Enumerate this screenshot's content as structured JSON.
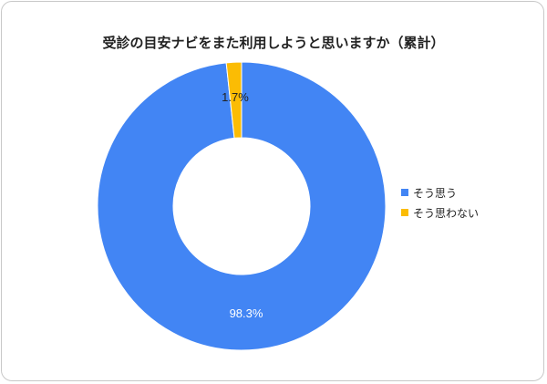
{
  "chart_data": {
    "type": "pie",
    "variant": "donut",
    "title": "受診の目安ナビをまた利用しようと思いますか（累計）",
    "categories": [
      "そう思う",
      "そう思わない"
    ],
    "values": [
      98.3,
      1.7
    ],
    "data_labels": [
      "98.3%",
      "1.7%"
    ],
    "colors": [
      "#4285f4",
      "#fbbc04"
    ],
    "legend_position": "right"
  }
}
